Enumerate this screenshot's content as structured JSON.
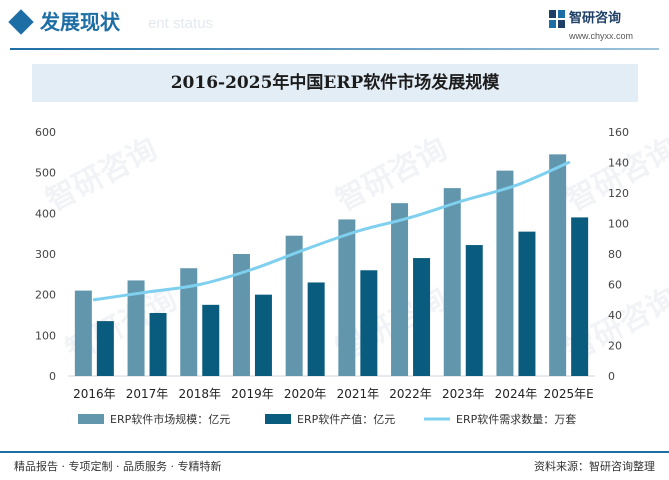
{
  "header": {
    "section_title": "发展现状",
    "section_title_en": "ent status",
    "brand_name": "智研咨询",
    "brand_url": "www.chyxx.com"
  },
  "colors": {
    "brand": "#1e6ea6",
    "bar_market": "#6196ad",
    "bar_output": "#0a5c7e",
    "line_demand": "#7fd0ef",
    "title_bg": "#e3edf6"
  },
  "footer": {
    "left": "精品报告 · 专项定制 · 品质服务 · 专精特新",
    "right": "资料来源：智研咨询整理"
  },
  "watermark_text": "智研咨询",
  "chart_data": {
    "type": "bar",
    "title": "2016-2025年中国ERP软件市场发展规模",
    "categories": [
      "2016年",
      "2017年",
      "2018年",
      "2019年",
      "2020年",
      "2021年",
      "2022年",
      "2023年",
      "2024年",
      "2025年E"
    ],
    "y_left": {
      "range": [
        0,
        600
      ],
      "ticks": [
        0,
        100,
        200,
        300,
        400,
        500,
        600
      ]
    },
    "y_right": {
      "range": [
        0,
        160
      ],
      "ticks": [
        0,
        20,
        40,
        60,
        80,
        100,
        120,
        140,
        160
      ]
    },
    "grid": false,
    "legend_position": "bottom",
    "series": [
      {
        "name": "ERP软件市场规模：亿元",
        "kind": "bar",
        "axis": "left",
        "values": [
          210,
          235,
          265,
          300,
          345,
          385,
          425,
          462,
          505,
          545
        ]
      },
      {
        "name": "ERP软件产值：亿元",
        "kind": "bar",
        "axis": "left",
        "values": [
          135,
          155,
          175,
          200,
          230,
          260,
          290,
          322,
          355,
          390
        ]
      },
      {
        "name": "ERP软件需求数量：万套",
        "kind": "line",
        "axis": "right",
        "values": [
          50,
          55,
          60,
          70,
          83,
          95,
          104,
          115,
          125,
          140
        ]
      }
    ]
  }
}
